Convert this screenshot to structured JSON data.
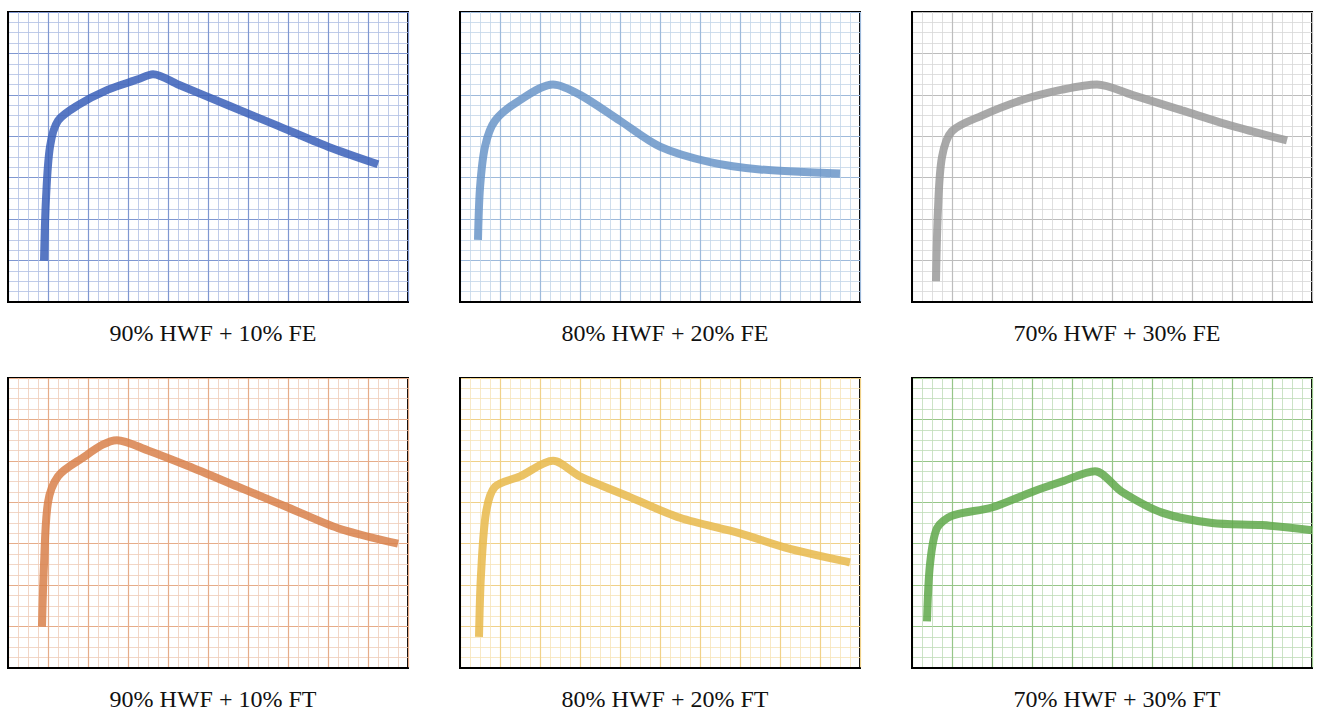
{
  "chart_data": [
    {
      "type": "line",
      "title": "90% HWF + 10% FE",
      "color": "#3a5fb8",
      "grid": true,
      "tick_labels": false,
      "x": [
        3.6,
        3.8,
        4.2,
        5,
        7,
        10,
        13,
        14.5,
        17,
        22,
        27,
        32,
        37
      ],
      "values": [
        4,
        10,
        15,
        17.5,
        19,
        20.5,
        21.5,
        22,
        21,
        19,
        17,
        15,
        13.3
      ],
      "xlim": [
        0,
        40
      ],
      "ylim": [
        0,
        28
      ],
      "xticks": [
        0,
        4,
        8,
        12,
        16,
        20,
        24,
        28,
        32,
        36,
        40
      ],
      "yticks": [
        0,
        4,
        8,
        12,
        16,
        20,
        24,
        28
      ]
    },
    {
      "type": "line",
      "title": "80% HWF + 20% FE",
      "color": "#6a95c8",
      "grid": true,
      "tick_labels": false,
      "x": [
        1.8,
        2,
        2.5,
        3.5,
        6,
        9.3,
        12,
        16,
        20,
        25,
        30,
        38
      ],
      "values": [
        6,
        11,
        15,
        17.5,
        19.5,
        21,
        20,
        17.5,
        15,
        13.5,
        12.8,
        12.4
      ],
      "xlim": [
        0,
        40
      ],
      "ylim": [
        0,
        28
      ],
      "xticks": [
        0,
        4,
        8,
        12,
        16,
        20,
        24,
        28,
        32,
        36,
        40
      ],
      "yticks": [
        0,
        4,
        8,
        12,
        16,
        20,
        24,
        28
      ]
    },
    {
      "type": "line",
      "title": "70% HWF + 30% FE",
      "color": "#9a9a9a",
      "grid": true,
      "tick_labels": false,
      "x": [
        2.4,
        2.6,
        3,
        4,
        7,
        11,
        15,
        18.5,
        22,
        27,
        32,
        37.5
      ],
      "values": [
        2,
        9,
        14,
        16.5,
        18,
        19.5,
        20.5,
        21,
        20,
        18.5,
        17,
        15.6
      ],
      "xlim": [
        0,
        40
      ],
      "ylim": [
        0,
        28
      ],
      "xticks": [
        0,
        4,
        8,
        12,
        16,
        20,
        24,
        28,
        32,
        36,
        40
      ],
      "yticks": [
        0,
        4,
        8,
        12,
        16,
        20,
        24,
        28
      ]
    },
    {
      "type": "line",
      "title": "90% HWF + 10% FT",
      "color": "#d8804a",
      "grid": true,
      "tick_labels": false,
      "x": [
        3.4,
        3.6,
        4,
        5,
        7,
        10.9,
        14,
        18,
        23,
        28,
        33,
        39
      ],
      "values": [
        4,
        10,
        16,
        18.5,
        20,
        22,
        21,
        19.5,
        17.5,
        15.5,
        13.5,
        12
      ],
      "xlim": [
        0,
        40
      ],
      "ylim": [
        0,
        28
      ],
      "xticks": [
        0,
        4,
        8,
        12,
        16,
        20,
        24,
        28,
        32,
        36,
        40
      ],
      "yticks": [
        0,
        4,
        8,
        12,
        16,
        20,
        24,
        28
      ]
    },
    {
      "type": "line",
      "title": "80% HWF + 20% FT",
      "color": "#e8b84a",
      "grid": true,
      "tick_labels": false,
      "x": [
        1.9,
        2.1,
        2.6,
        3.5,
        6,
        9.3,
        12,
        17,
        22,
        28,
        33,
        39
      ],
      "values": [
        3,
        9,
        15,
        17.5,
        18.5,
        20,
        18.5,
        16.5,
        14.5,
        13,
        11.5,
        10.2
      ],
      "xlim": [
        0,
        40
      ],
      "ylim": [
        0,
        28
      ],
      "xticks": [
        0,
        4,
        8,
        12,
        16,
        20,
        24,
        28,
        32,
        36,
        40
      ],
      "yticks": [
        0,
        4,
        8,
        12,
        16,
        20,
        24,
        28
      ]
    },
    {
      "type": "line",
      "title": "70% HWF + 30% FT",
      "color": "#5fa84a",
      "grid": true,
      "tick_labels": false,
      "x": [
        1.5,
        1.8,
        2.5,
        4,
        8,
        12,
        15,
        18.3,
        21,
        25,
        30,
        35,
        40
      ],
      "values": [
        4.5,
        10,
        13.5,
        14.7,
        15.5,
        17,
        18,
        19,
        17,
        15,
        14,
        13.8,
        13.3
      ],
      "xlim": [
        0,
        40
      ],
      "ylim": [
        0,
        28
      ],
      "xticks": [
        0,
        4,
        8,
        12,
        16,
        20,
        24,
        28,
        32,
        36,
        40
      ],
      "yticks": [
        0,
        4,
        8,
        12,
        16,
        20,
        24,
        28
      ]
    }
  ]
}
